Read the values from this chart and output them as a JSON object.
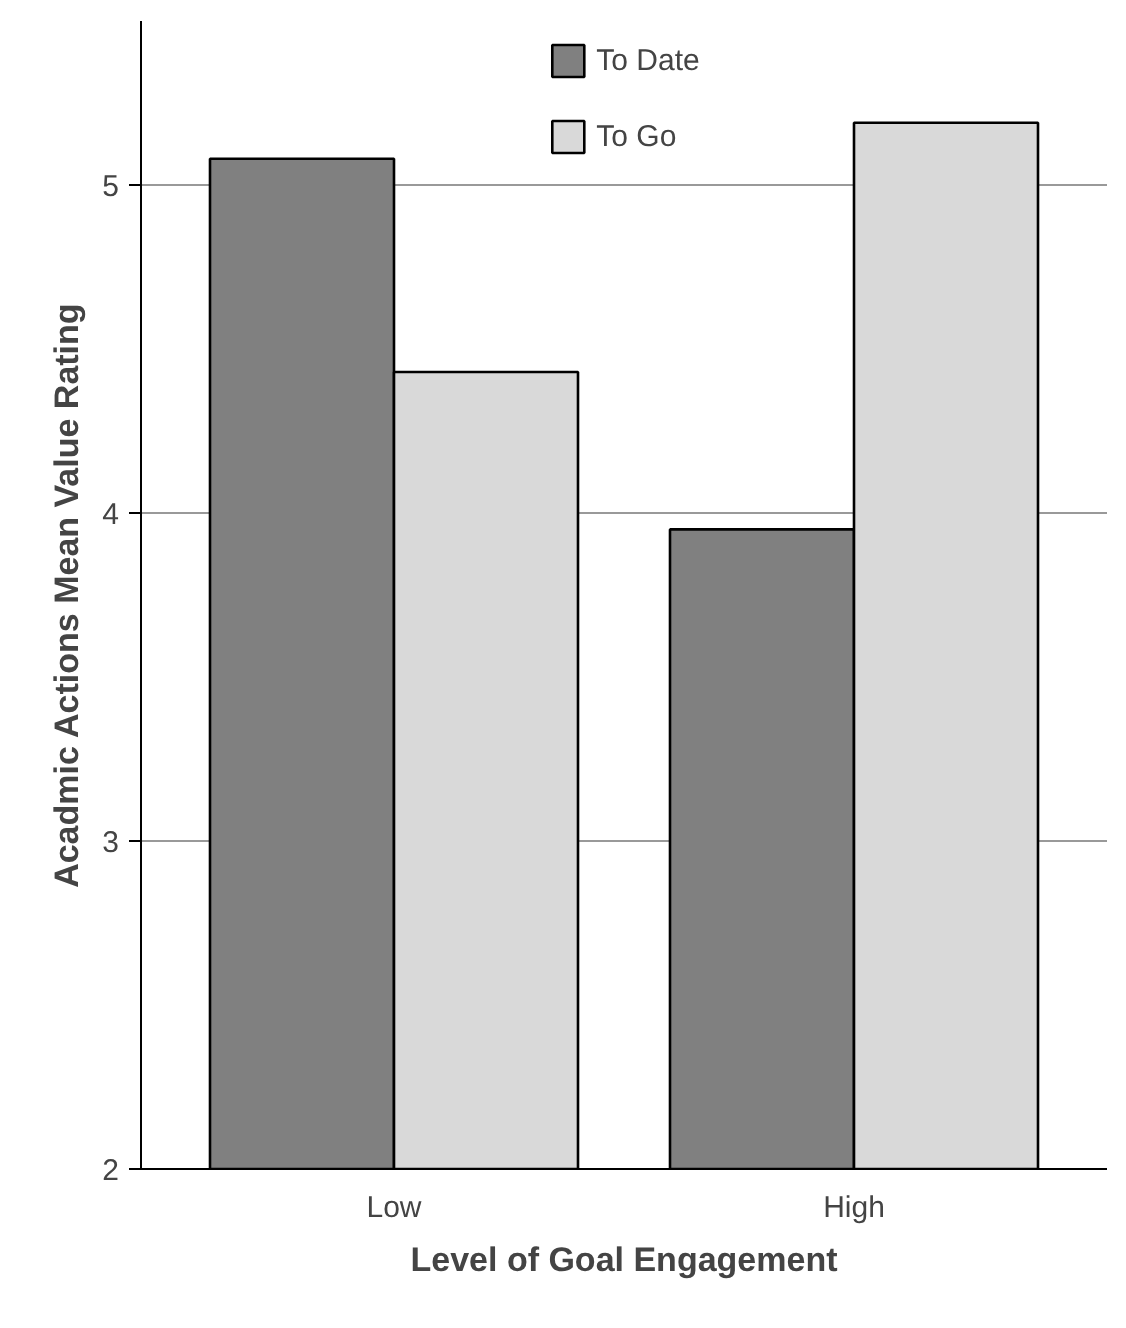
{
  "chart_data": {
    "type": "bar",
    "xlabel": "Level of Goal Engagement",
    "ylabel": "Acadmic Actions Mean Value Rating",
    "categories": [
      "Low",
      "High"
    ],
    "series": [
      {
        "name": "To Date",
        "color": "#808080",
        "values": [
          5.08,
          3.95
        ]
      },
      {
        "name": "To Go",
        "color": "#d9d9d9",
        "values": [
          4.43,
          5.19
        ]
      }
    ],
    "ylim": [
      2,
      5.5
    ],
    "yticks": [
      2,
      3,
      4,
      5
    ],
    "grid": "y",
    "legend": "top"
  }
}
